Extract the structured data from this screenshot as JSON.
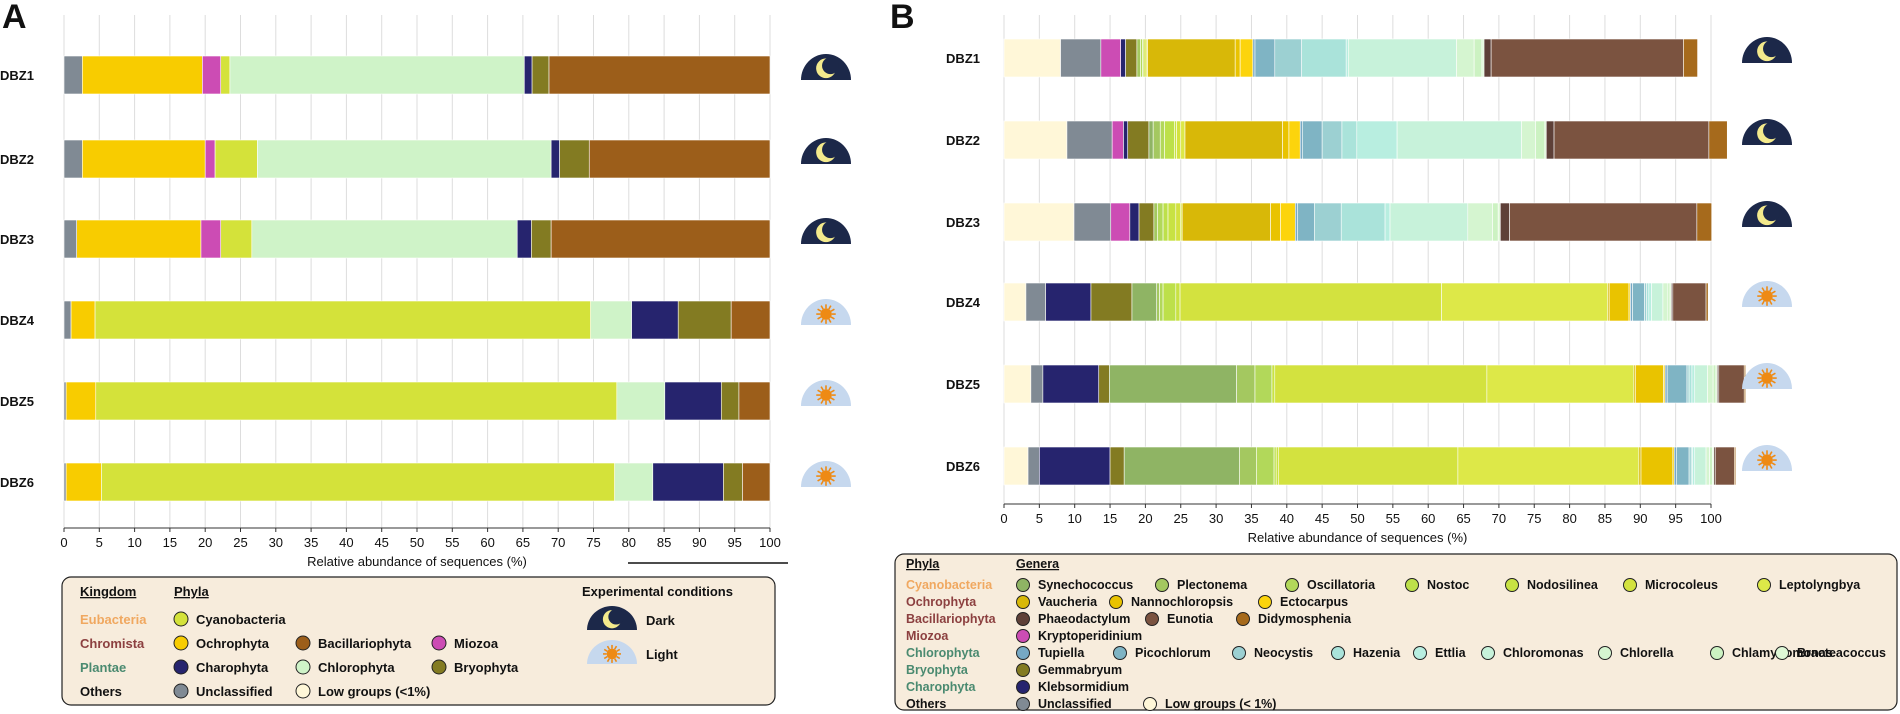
{
  "panel_a": {
    "letter": "A",
    "chart_data": {
      "type": "bar",
      "orientation": "horizontal",
      "stacked": true,
      "categories": [
        "DBZ1",
        "DBZ2",
        "DBZ3",
        "DBZ4",
        "DBZ5",
        "DBZ6"
      ],
      "xlabel": "Relative abundance of sequences (%)",
      "xlim": [
        0,
        100
      ],
      "xticks": [
        0,
        5,
        10,
        15,
        20,
        25,
        30,
        35,
        40,
        45,
        50,
        55,
        60,
        65,
        70,
        75,
        80,
        85,
        90,
        95,
        100
      ],
      "series": [
        {
          "name": "Unclassified",
          "color": "#808a94",
          "values": [
            2.6,
            2.6,
            1.8,
            1.0,
            0.3,
            0.3
          ]
        },
        {
          "name": "Ochrophyta",
          "color": "#f8cc00",
          "values": [
            17.0,
            17.4,
            17.6,
            3.4,
            4.2,
            5.0
          ]
        },
        {
          "name": "Miozoa",
          "color": "#cc4cb4",
          "values": [
            2.6,
            1.4,
            2.8,
            0,
            0,
            0
          ]
        },
        {
          "name": "Cyanobacteria",
          "color": "#d4e23a",
          "values": [
            1.3,
            6.0,
            4.4,
            70.2,
            73.8,
            72.7
          ]
        },
        {
          "name": "Chlorophyta",
          "color": "#cff3c8",
          "values": [
            41.7,
            41.6,
            37.6,
            5.8,
            6.8,
            5.4
          ]
        },
        {
          "name": "Charophyta",
          "color": "#26246e",
          "values": [
            1.1,
            1.2,
            2.0,
            6.6,
            8.0,
            10.0
          ]
        },
        {
          "name": "Bryophyta",
          "color": "#837b22",
          "values": [
            2.4,
            4.2,
            2.8,
            7.5,
            2.5,
            2.7
          ]
        },
        {
          "name": "Bacillariophyta",
          "color": "#9c5e1a",
          "values": [
            31.3,
            25.6,
            31.0,
            5.5,
            4.4,
            3.9
          ]
        }
      ],
      "conditions": [
        "Dark",
        "Dark",
        "Dark",
        "Light",
        "Light",
        "Light"
      ]
    },
    "legend": {
      "kingdom_header": "Kingdom",
      "phyla_header": "Phyla",
      "conditions_header": "Experimental conditions",
      "rows": [
        {
          "kingdom": "Eubacteria",
          "kingdom_color": "#f0a860",
          "items": [
            {
              "label": "Cyanobacteria",
              "color": "#d4e23a"
            }
          ]
        },
        {
          "kingdom": "Chromista",
          "kingdom_color": "#8c4040",
          "items": [
            {
              "label": "Ochrophyta",
              "color": "#f8cc00"
            },
            {
              "label": "Bacillariophyta",
              "color": "#9c5e1a"
            },
            {
              "label": "Miozoa",
              "color": "#cc4cb4"
            }
          ]
        },
        {
          "kingdom": "Plantae",
          "kingdom_color": "#4a8a70",
          "items": [
            {
              "label": "Charophyta",
              "color": "#26246e"
            },
            {
              "label": "Chlorophyta",
              "color": "#cff3c8"
            },
            {
              "label": "Bryophyta",
              "color": "#837b22"
            }
          ]
        },
        {
          "kingdom": "Others",
          "kingdom_color": "#111111",
          "items": [
            {
              "label": "Unclassified",
              "color": "#808a94"
            },
            {
              "label": "Low groups (<1%)",
              "color": "#fff7d8"
            }
          ]
        }
      ],
      "conditions": [
        {
          "label": "Dark",
          "icon": "moon-icon"
        },
        {
          "label": "Light",
          "icon": "sun-icon"
        }
      ]
    }
  },
  "panel_b": {
    "letter": "B",
    "chart_data": {
      "type": "bar",
      "orientation": "horizontal",
      "stacked": true,
      "categories": [
        "DBZ1",
        "DBZ2",
        "DBZ3",
        "DBZ4",
        "DBZ5",
        "DBZ6"
      ],
      "xlabel": "Relative abundance of sequences (%)",
      "xlim": [
        0,
        100
      ],
      "xticks": [
        0,
        5,
        10,
        15,
        20,
        25,
        30,
        35,
        40,
        45,
        50,
        55,
        60,
        65,
        70,
        75,
        80,
        85,
        90,
        95,
        100
      ],
      "series": [
        {
          "name": "Low groups (< 1%)",
          "color": "#fff7d8",
          "values": [
            8.0,
            8.9,
            9.9,
            3.1,
            3.8,
            3.4
          ]
        },
        {
          "name": "Unclassified",
          "color": "#808a94",
          "values": [
            5.7,
            6.4,
            5.2,
            2.8,
            1.7,
            1.6
          ]
        },
        {
          "name": "Kryptoperidinium",
          "color": "#cc4cb4",
          "values": [
            2.8,
            1.6,
            2.7,
            0,
            0,
            0
          ]
        },
        {
          "name": "Klebsormidium",
          "color": "#26246e",
          "values": [
            0.7,
            0.6,
            1.3,
            6.4,
            7.9,
            10.0
          ]
        },
        {
          "name": "Gemmabryum",
          "color": "#837b22",
          "values": [
            1.6,
            3.0,
            2.1,
            5.8,
            1.5,
            2.0
          ]
        },
        {
          "name": "Synechococcus",
          "color": "#8fb464",
          "values": [
            0,
            0.6,
            0,
            3.5,
            18.0,
            16.3
          ]
        },
        {
          "name": "Plectonema",
          "color": "#a4c860",
          "values": [
            0.5,
            1.0,
            0.5,
            0.4,
            2.6,
            2.4
          ]
        },
        {
          "name": "Oscillatoria",
          "color": "#b2d85a",
          "values": [
            0.3,
            0.6,
            0.8,
            0.5,
            2.4,
            2.5
          ]
        },
        {
          "name": "Nostoc",
          "color": "#bde04a",
          "values": [
            0.2,
            1.4,
            0.7,
            1.8,
            0,
            0.3
          ]
        },
        {
          "name": "Nodosilinea",
          "color": "#c8e243",
          "values": [
            0,
            0.3,
            1.1,
            0.6,
            0.4,
            0.3
          ]
        },
        {
          "name": "Microcoleus",
          "color": "#d3e23f",
          "values": [
            0.3,
            0.6,
            0.7,
            37.0,
            30.0,
            25.4
          ]
        },
        {
          "name": "Leptolyngbya",
          "color": "#dde848",
          "values": [
            0.2,
            0.6,
            0.2,
            23.5,
            20.8,
            25.6
          ]
        },
        {
          "name": "Vaucheria",
          "color": "#d8b808",
          "values": [
            12.4,
            13.8,
            12.5,
            0.2,
            0.2,
            0.3
          ]
        },
        {
          "name": "Nannochloropsis",
          "color": "#e9c300",
          "values": [
            0.7,
            0.9,
            1.4,
            2.8,
            4.0,
            4.5
          ]
        },
        {
          "name": "Ectocarpus",
          "color": "#fcd40c",
          "values": [
            1.8,
            1.6,
            2.1,
            0.2,
            0.2,
            0.2
          ]
        },
        {
          "name": "Tupiella",
          "color": "#76a8c4",
          "values": [
            0.3,
            0.3,
            0.3,
            0.3,
            0.3,
            0.3
          ]
        },
        {
          "name": "Picochlorum",
          "color": "#7fb4c4",
          "values": [
            2.8,
            2.8,
            2.4,
            1.7,
            2.8,
            1.8
          ]
        },
        {
          "name": "Neocystis",
          "color": "#9cd0d2",
          "values": [
            3.8,
            2.8,
            3.8,
            0.3,
            0.3,
            0.3
          ]
        },
        {
          "name": "Hazenia",
          "color": "#aae3da",
          "values": [
            6.3,
            2.1,
            6.2,
            0.3,
            0.4,
            0.2
          ]
        },
        {
          "name": "Ettlia",
          "color": "#b8eee0",
          "values": [
            0.3,
            5.7,
            0.7,
            0.4,
            0.4,
            0.3
          ]
        },
        {
          "name": "Chloromonas",
          "color": "#c7f2da",
          "values": [
            15.3,
            17.6,
            11.0,
            1.6,
            1.8,
            1.6
          ]
        },
        {
          "name": "Chlorella",
          "color": "#d5f5d0",
          "values": [
            2.5,
            2.0,
            3.5,
            0.7,
            0.8,
            0.5
          ]
        },
        {
          "name": "Chlamydomonas",
          "color": "#ccf2c2",
          "values": [
            1.1,
            1.3,
            0.8,
            0.3,
            0.4,
            0.4
          ]
        },
        {
          "name": "Bracteacoccus",
          "color": "#def8d6",
          "values": [
            0.3,
            0.2,
            0.3,
            0.2,
            0.2,
            0.2
          ]
        },
        {
          "name": "Phaeodactylum",
          "color": "#5e4038",
          "values": [
            1.0,
            1.1,
            1.3,
            0.2,
            0.2,
            0.2
          ]
        },
        {
          "name": "Eunotia",
          "color": "#7b5340",
          "values": [
            27.2,
            21.9,
            26.5,
            4.7,
            3.6,
            2.7
          ]
        },
        {
          "name": "Didymosphenia",
          "color": "#a66a1c",
          "values": [
            2.0,
            2.6,
            2.1,
            0.3,
            0.2,
            0.2
          ]
        }
      ],
      "conditions": [
        "Dark",
        "Dark",
        "Dark",
        "Light",
        "Light",
        "Light"
      ]
    },
    "legend": {
      "phyla_header": "Phyla",
      "genera_header": "Genera",
      "rows": [
        {
          "phylum": "Cyanobacteria",
          "phylum_color": "#f0a860",
          "genera": [
            {
              "label": "Synechococcus",
              "color": "#8fb464"
            },
            {
              "label": "Plectonema",
              "color": "#a4c860"
            },
            {
              "label": "Oscillatoria",
              "color": "#b2d85a"
            },
            {
              "label": "Nostoc",
              "color": "#bde04a"
            },
            {
              "label": "Nodosilinea",
              "color": "#c8e243"
            },
            {
              "label": "Microcoleus",
              "color": "#d3e23f"
            },
            {
              "label": "Leptolyngbya",
              "color": "#dde848"
            }
          ]
        },
        {
          "phylum": "Ochrophyta",
          "phylum_color": "#8c4040",
          "genera": [
            {
              "label": "Vaucheria",
              "color": "#d8b808"
            },
            {
              "label": "Nannochloropsis",
              "color": "#e9c300"
            },
            {
              "label": "Ectocarpus",
              "color": "#fcd40c"
            }
          ]
        },
        {
          "phylum": "Bacillariophyta",
          "phylum_color": "#8c4040",
          "genera": [
            {
              "label": "Phaeodactylum",
              "color": "#5e4038"
            },
            {
              "label": "Eunotia",
              "color": "#7b5340"
            },
            {
              "label": "Didymosphenia",
              "color": "#a66a1c"
            }
          ]
        },
        {
          "phylum": "Miozoa",
          "phylum_color": "#8c4040",
          "genera": [
            {
              "label": "Kryptoperidinium",
              "color": "#cc4cb4"
            }
          ]
        },
        {
          "phylum": "Chlorophyta",
          "phylum_color": "#4a8a70",
          "genera": [
            {
              "label": "Tupiella",
              "color": "#76a8c4"
            },
            {
              "label": "Picochlorum",
              "color": "#7fb4c4"
            },
            {
              "label": "Neocystis",
              "color": "#9cd0d2"
            },
            {
              "label": "Hazenia",
              "color": "#aae3da"
            },
            {
              "label": "Ettlia",
              "color": "#b8eee0"
            },
            {
              "label": "Chloromonas",
              "color": "#c7f2da"
            },
            {
              "label": "Chlorella",
              "color": "#d5f5d0"
            },
            {
              "label": "Chlamydomonas",
              "color": "#ccf2c2"
            },
            {
              "label": "Bracteacoccus",
              "color": "#def8d6"
            }
          ]
        },
        {
          "phylum": "Bryophyta",
          "phylum_color": "#4a8a70",
          "genera": [
            {
              "label": "Gemmabryum",
              "color": "#837b22"
            }
          ]
        },
        {
          "phylum": "Charophyta",
          "phylum_color": "#4a8a70",
          "genera": [
            {
              "label": "Klebsormidium",
              "color": "#26246e"
            }
          ]
        },
        {
          "phylum": "Others",
          "phylum_color": "#111111",
          "genera": [
            {
              "label": "Unclassified",
              "color": "#808a94"
            },
            {
              "label": "Low groups (< 1%)",
              "color": "#fff7d8"
            }
          ]
        }
      ]
    }
  }
}
